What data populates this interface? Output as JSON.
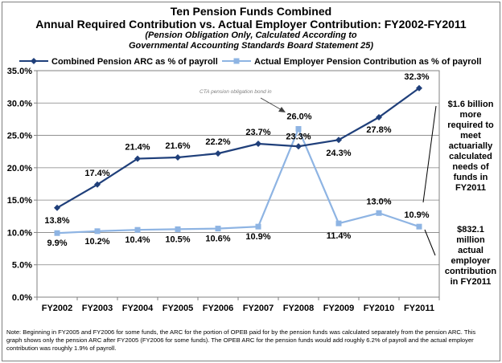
{
  "title_line1": "Ten Pension Funds Combined",
  "title_line2": "Annual Required Contribution vs. Actual Employer Contribution: FY2002-FY2011",
  "subtitle_line1": "(Pension Obligation Only, Calculated According to",
  "subtitle_line2": "Governmental Accounting Standards Board Statement 25)",
  "colors": {
    "arc": "#1f3f7a",
    "actual": "#8eb4e3",
    "frame": "#7f7f7f",
    "axis": "#808080"
  },
  "chart_data": {
    "type": "line",
    "categories": [
      "FY2002",
      "FY2003",
      "FY2004",
      "FY2005",
      "FY2006",
      "FY2007",
      "FY2008",
      "FY2009",
      "FY2010",
      "FY2011"
    ],
    "series": [
      {
        "name": "Combined Pension ARC as % of payroll",
        "values": [
          13.8,
          17.4,
          21.4,
          21.6,
          22.2,
          23.7,
          23.3,
          24.3,
          27.8,
          32.3
        ],
        "labels": [
          "13.8%",
          "17.4%",
          "21.4%",
          "21.6%",
          "22.2%",
          "23.7%",
          "23.3%",
          "24.3%",
          "27.8%",
          "32.3%"
        ],
        "marker": "diamond"
      },
      {
        "name": "Actual Employer Pension Contribution as % of payroll",
        "values": [
          9.9,
          10.2,
          10.4,
          10.5,
          10.6,
          10.9,
          26.0,
          11.4,
          13.0,
          10.9
        ],
        "labels": [
          "9.9%",
          "10.2%",
          "10.4%",
          "10.5%",
          "10.6%",
          "10.9%",
          "26.0%",
          "11.4%",
          "13.0%",
          "10.9%"
        ],
        "marker": "square"
      }
    ],
    "ylim": [
      0,
      35
    ],
    "yticks": [
      "0.0%",
      "5.0%",
      "10.0%",
      "15.0%",
      "20.0%",
      "25.0%",
      "30.0%",
      "35.0%"
    ],
    "grid": true,
    "legend": "top",
    "annotations": {
      "bond": "CTA pension obligation bond in",
      "arc_gap": [
        "$1.6 billion",
        "more",
        "required to",
        "meet",
        "actuarially",
        "calculated",
        "needs of",
        "funds in",
        "FY2011"
      ],
      "actual_note": [
        "$832.1",
        "million",
        "actual",
        "employer",
        "contribution",
        "in FY2011"
      ]
    }
  },
  "note": "Note: Beginning in FY2005 and FY2006 for some funds, the ARC for the portion of OPEB paid for by the pension funds was calculated separately from the pension ARC. This graph shows only the pension ARC after FY2005 (FY2006 for some funds). The OPEB ARC for the pension funds would add roughly 6.2% of payroll and the actual employer contribution was roughly 1.9% of payroll."
}
